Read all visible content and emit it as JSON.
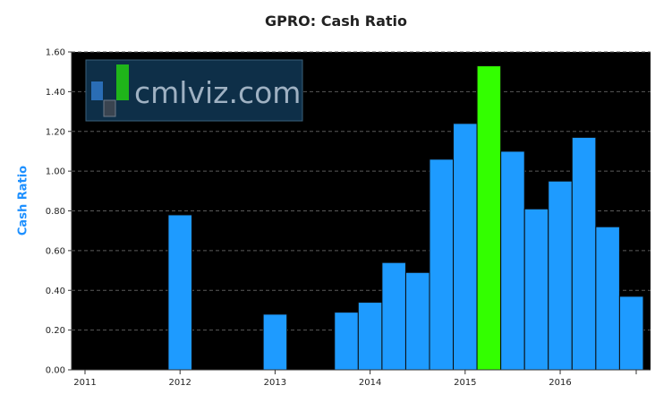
{
  "chart_data": {
    "type": "bar",
    "title": "GPRO: Cash Ratio",
    "xlabel": "",
    "ylabel": "Cash Ratio",
    "ylim": [
      0,
      1.6
    ],
    "yticks": [
      "0.00",
      "0.20",
      "0.40",
      "0.60",
      "0.80",
      "1.00",
      "1.20",
      "1.40",
      "1.60"
    ],
    "xticks": [
      "2011",
      "2012",
      "2013",
      "2014",
      "2015",
      "2016"
    ],
    "grid": true,
    "background": "#000000",
    "bar_color": "#1e9bff",
    "highlight_color": "#33ff00",
    "bars": [
      {
        "x": 2012.0,
        "value": 0.78
      },
      {
        "x": 2013.0,
        "value": 0.28
      },
      {
        "x": 2013.75,
        "value": 0.29
      },
      {
        "x": 2014.0,
        "value": 0.34
      },
      {
        "x": 2014.25,
        "value": 0.54
      },
      {
        "x": 2014.5,
        "value": 0.49
      },
      {
        "x": 2014.75,
        "value": 1.06
      },
      {
        "x": 2015.0,
        "value": 1.24
      },
      {
        "x": 2015.25,
        "value": 1.53,
        "highlight": true
      },
      {
        "x": 2015.5,
        "value": 1.1
      },
      {
        "x": 2015.75,
        "value": 0.81
      },
      {
        "x": 2016.0,
        "value": 0.95
      },
      {
        "x": 2016.25,
        "value": 1.17
      },
      {
        "x": 2016.5,
        "value": 0.72
      },
      {
        "x": 2016.75,
        "value": 0.37
      }
    ]
  },
  "watermark": {
    "text": "cmlviz.com"
  }
}
